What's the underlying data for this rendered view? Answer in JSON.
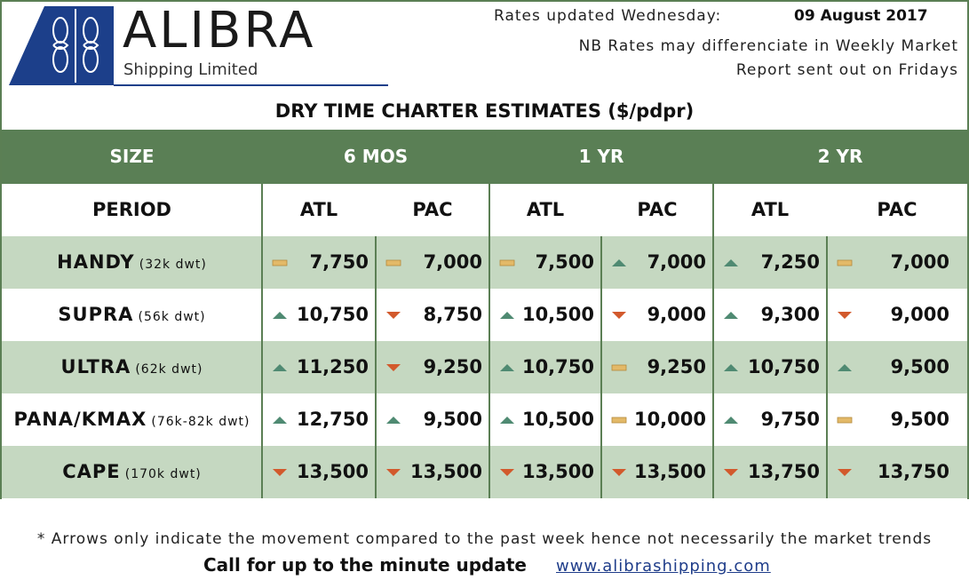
{
  "header": {
    "brand_name": "ALIBRA",
    "brand_sub": "Shipping Limited",
    "updated_label": "Rates updated Wednesday:",
    "updated_date": "09 August 2017",
    "nb_line1": "NB Rates may differenciate in Weekly Market",
    "nb_line2": "Report sent out on Fridays"
  },
  "title": "DRY TIME CHARTER ESTIMATES ($/pdpr)",
  "colors": {
    "header_green": "#5a7f55",
    "row_shade": "#c5d8c1",
    "arrow_up": "#4f8a72",
    "arrow_down": "#d2592c",
    "flat": "#e3b968",
    "brand_blue": "#1c3f8a"
  },
  "table": {
    "size_label": "SIZE",
    "groups": [
      "6 MOS",
      "1 YR",
      "2 YR"
    ],
    "period_label": "PERIOD",
    "subheads": [
      "ATL",
      "PAC",
      "ATL",
      "PAC",
      "ATL",
      "PAC"
    ],
    "rows": [
      {
        "name": "HANDY",
        "dwt": "(32k dwt)",
        "cells": [
          {
            "value": "7,750",
            "trend": "flat"
          },
          {
            "value": "7,000",
            "trend": "flat"
          },
          {
            "value": "7,500",
            "trend": "flat"
          },
          {
            "value": "7,000",
            "trend": "up"
          },
          {
            "value": "7,250",
            "trend": "up"
          },
          {
            "value": "7,000",
            "trend": "flat"
          }
        ]
      },
      {
        "name": "SUPRA",
        "dwt": "(56k dwt)",
        "cells": [
          {
            "value": "10,750",
            "trend": "up"
          },
          {
            "value": "8,750",
            "trend": "down"
          },
          {
            "value": "10,500",
            "trend": "up"
          },
          {
            "value": "9,000",
            "trend": "down"
          },
          {
            "value": "9,300",
            "trend": "up"
          },
          {
            "value": "9,000",
            "trend": "down"
          }
        ]
      },
      {
        "name": "ULTRA",
        "dwt": "(62k dwt)",
        "cells": [
          {
            "value": "11,250",
            "trend": "up"
          },
          {
            "value": "9,250",
            "trend": "down"
          },
          {
            "value": "10,750",
            "trend": "up"
          },
          {
            "value": "9,250",
            "trend": "flat"
          },
          {
            "value": "10,750",
            "trend": "up"
          },
          {
            "value": "9,500",
            "trend": "up"
          }
        ]
      },
      {
        "name": "PANA/KMAX",
        "dwt": "(76k-82k dwt)",
        "cells": [
          {
            "value": "12,750",
            "trend": "up"
          },
          {
            "value": "9,500",
            "trend": "up"
          },
          {
            "value": "10,500",
            "trend": "up"
          },
          {
            "value": "10,000",
            "trend": "flat"
          },
          {
            "value": "9,750",
            "trend": "up"
          },
          {
            "value": "9,500",
            "trend": "flat"
          }
        ]
      },
      {
        "name": "CAPE",
        "dwt": "(170k dwt)",
        "cells": [
          {
            "value": "13,500",
            "trend": "down"
          },
          {
            "value": "13,500",
            "trend": "down"
          },
          {
            "value": "13,500",
            "trend": "down"
          },
          {
            "value": "13,500",
            "trend": "down"
          },
          {
            "value": "13,750",
            "trend": "down"
          },
          {
            "value": "13,750",
            "trend": "down"
          }
        ]
      }
    ]
  },
  "footer": {
    "note": "* Arrows only indicate the movement compared to the past week hence not necessarily the market trends",
    "call": "Call for up to the minute update",
    "website": "www.alibrashipping.com"
  }
}
